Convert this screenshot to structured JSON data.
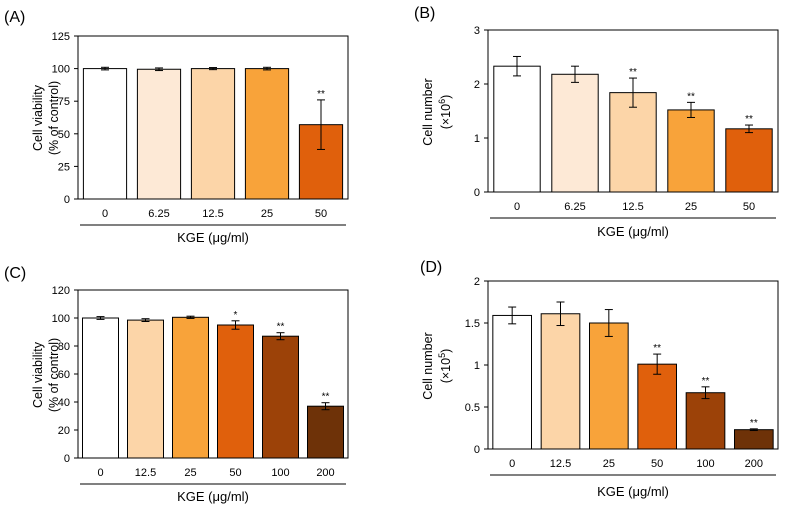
{
  "chart_data": [
    {
      "type": "bar",
      "panel": "(A)",
      "ylabel_line1": "Cell viability",
      "ylabel_line2": "(% of control)",
      "xlabel": "KGE (μg/ml)",
      "categories": [
        "0",
        "6.25",
        "12.5",
        "25",
        "50"
      ],
      "values": [
        100,
        99.5,
        100,
        100,
        57
      ],
      "errors": [
        1,
        1,
        0.8,
        1,
        19
      ],
      "significance": [
        "",
        "",
        "",
        "",
        "**"
      ],
      "colors": [
        "#ffffff",
        "#fde9d6",
        "#fcd5a8",
        "#f8a33a",
        "#e0600c"
      ],
      "ylim": [
        0,
        125
      ],
      "yticks": [
        0,
        25,
        50,
        75,
        100,
        125
      ]
    },
    {
      "type": "bar",
      "panel": "(B)",
      "ylabel_line1": "Cell number",
      "ylabel_line2": "(×10",
      "ylabel_exp": "6",
      "ylabel_close": ")",
      "xlabel": "KGE (μg/ml)",
      "categories": [
        "0",
        "6.25",
        "12.5",
        "25",
        "50"
      ],
      "values": [
        2.33,
        2.18,
        1.84,
        1.52,
        1.17
      ],
      "errors": [
        0.18,
        0.15,
        0.27,
        0.14,
        0.07
      ],
      "significance": [
        "",
        "",
        "**",
        "**",
        "**"
      ],
      "colors": [
        "#ffffff",
        "#fde9d6",
        "#fcd5a8",
        "#f8a33a",
        "#e0600c"
      ],
      "ylim": [
        0,
        3
      ],
      "yticks": [
        0,
        1,
        2,
        3
      ]
    },
    {
      "type": "bar",
      "panel": "(C)",
      "ylabel_line1": "Cell viability",
      "ylabel_line2": "(% of control)",
      "xlabel": "KGE (μg/ml)",
      "categories": [
        "0",
        "12.5",
        "25",
        "50",
        "100",
        "200"
      ],
      "values": [
        100,
        98.5,
        100.5,
        95,
        87,
        37
      ],
      "errors": [
        1,
        1,
        0.8,
        3,
        2.5,
        2.5
      ],
      "significance": [
        "",
        "",
        "",
        "*",
        "**",
        "**"
      ],
      "colors": [
        "#ffffff",
        "#fcd5a8",
        "#f8a33a",
        "#e0600c",
        "#9c4208",
        "#6e3208"
      ],
      "ylim": [
        0,
        120
      ],
      "yticks": [
        0,
        20,
        40,
        60,
        80,
        100,
        120
      ]
    },
    {
      "type": "bar",
      "panel": "(D)",
      "ylabel_line1": "Cell number",
      "ylabel_line2": "(×10",
      "ylabel_exp": "5",
      "ylabel_close": ")",
      "xlabel": "KGE (μg/ml)",
      "categories": [
        "0",
        "12.5",
        "25",
        "50",
        "100",
        "200"
      ],
      "values": [
        1.59,
        1.61,
        1.5,
        1.01,
        0.67,
        0.23
      ],
      "errors": [
        0.1,
        0.14,
        0.16,
        0.12,
        0.07,
        0.01
      ],
      "significance": [
        "",
        "",
        "",
        "**",
        "**",
        "**"
      ],
      "colors": [
        "#ffffff",
        "#fcd5a8",
        "#f8a33a",
        "#e0600c",
        "#9c4208",
        "#6e3208"
      ],
      "ylim": [
        0,
        2
      ],
      "yticks": [
        0,
        0.5,
        1,
        1.5,
        2
      ]
    }
  ]
}
